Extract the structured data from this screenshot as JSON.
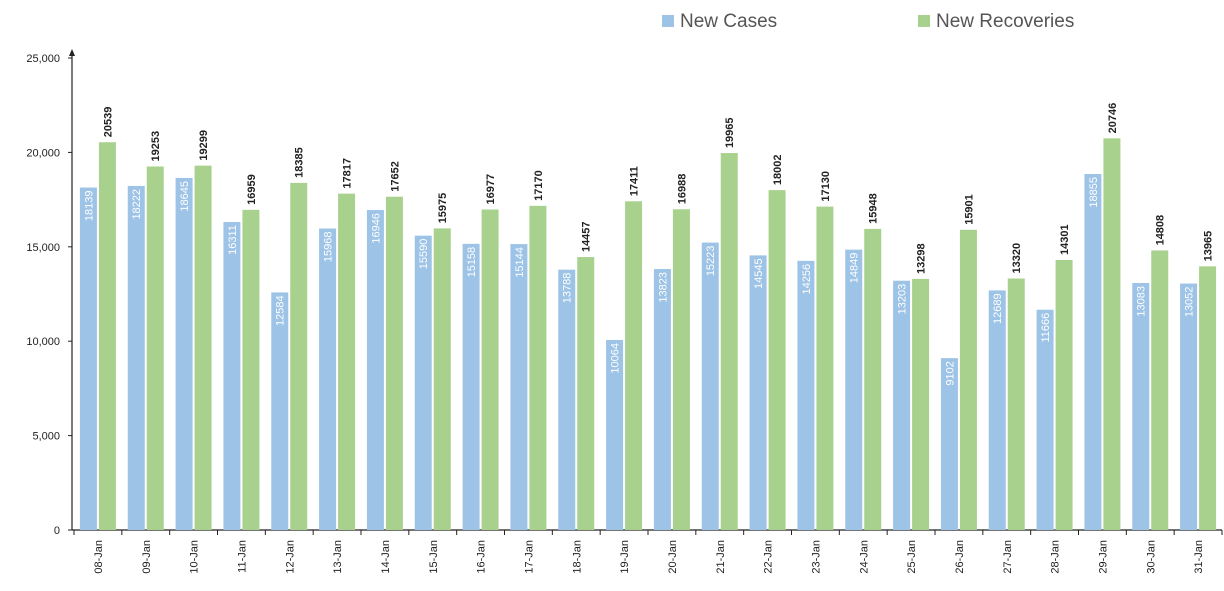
{
  "chart_data": {
    "type": "bar",
    "categories": [
      "08-Jan",
      "09-Jan",
      "10-Jan",
      "11-Jan",
      "12-Jan",
      "13-Jan",
      "14-Jan",
      "15-Jan",
      "16-Jan",
      "17-Jan",
      "18-Jan",
      "19-Jan",
      "20-Jan",
      "21-Jan",
      "22-Jan",
      "23-Jan",
      "24-Jan",
      "25-Jan",
      "26-Jan",
      "27-Jan",
      "28-Jan",
      "29-Jan",
      "30-Jan",
      "31-Jan"
    ],
    "series": [
      {
        "name": "New Cases",
        "color": "#9dc3e6",
        "values": [
          18139,
          18222,
          18645,
          16311,
          12584,
          15968,
          16946,
          15590,
          15158,
          15144,
          13788,
          10064,
          13823,
          15223,
          14545,
          14256,
          14849,
          13203,
          9102,
          12689,
          11666,
          18855,
          13083,
          13052
        ]
      },
      {
        "name": "New Recoveries",
        "color": "#a9d18e",
        "values": [
          20539,
          19253,
          19299,
          16959,
          18385,
          17817,
          17652,
          15975,
          16977,
          17170,
          14457,
          17411,
          16988,
          19965,
          18002,
          17130,
          15948,
          13298,
          15901,
          13320,
          14301,
          20746,
          14808,
          13965
        ]
      }
    ],
    "ylim": [
      0,
      25000
    ],
    "yticks": [
      0,
      {
        "value": 5000,
        "label": "5,000"
      },
      {
        "value": 10000,
        "label": "10,000"
      },
      {
        "value": 15000,
        "label": "15,000"
      },
      {
        "value": 20000,
        "label": "20,000"
      },
      {
        "value": 25000,
        "label": "25,000"
      }
    ],
    "legend": "top-right",
    "grid": false
  }
}
